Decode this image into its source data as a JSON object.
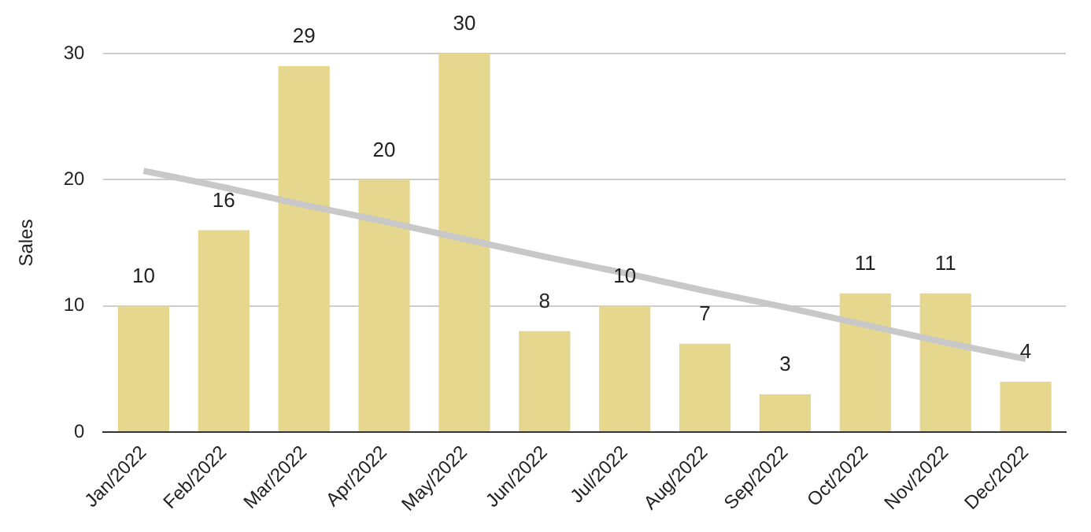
{
  "chart_data": {
    "type": "bar",
    "ylabel": "Sales",
    "categories": [
      "Jan/2022",
      "Feb/2022",
      "Mar/2022",
      "Apr/2022",
      "May/2022",
      "Jun/2022",
      "Jul/2022",
      "Aug/2022",
      "Sep/2022",
      "Oct/2022",
      "Nov/2022",
      "Dec/2022"
    ],
    "series": [
      {
        "color": "#e6d78f",
        "values": [
          10,
          16,
          29,
          20,
          30,
          8,
          10,
          7,
          3,
          11,
          11,
          4
        ],
        "value_labels": [
          "10",
          "16",
          "29",
          "20",
          "30",
          "8",
          "10",
          "7",
          "3",
          "11",
          "11",
          "4"
        ]
      },
      {
        "type": "line",
        "color": "#c8c8c8",
        "values": [
          20.7,
          19.4,
          18.0,
          16.7,
          15.3,
          13.9,
          12.6,
          11.2,
          9.9,
          8.5,
          7.1,
          5.8
        ]
      }
    ],
    "ylim": [
      0,
      30
    ],
    "yticks": [
      0,
      10,
      20,
      30
    ],
    "grid": "y",
    "legend": false,
    "marker": "none"
  }
}
